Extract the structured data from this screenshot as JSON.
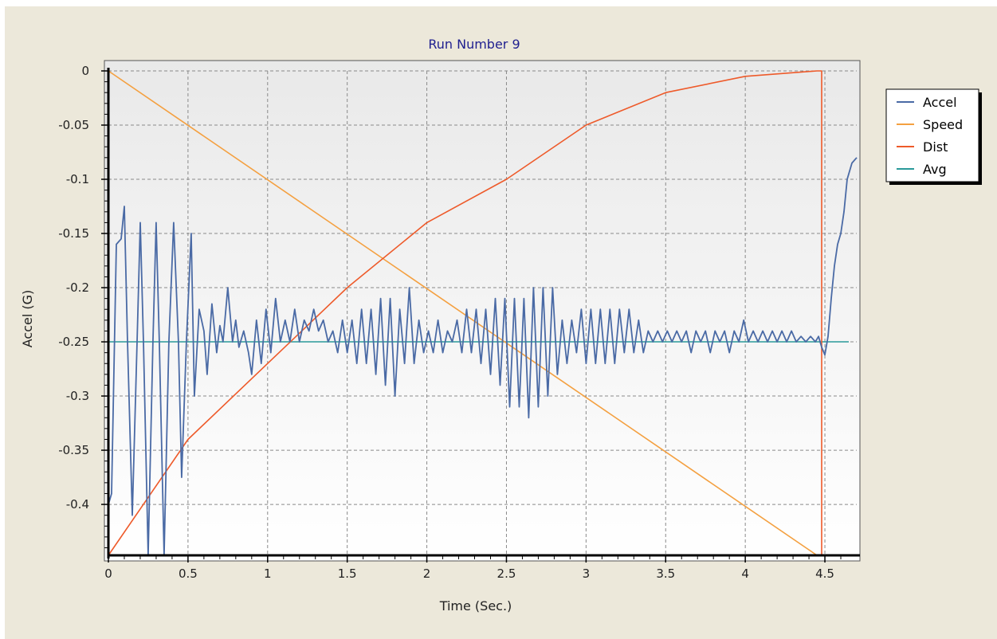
{
  "chart_data": {
    "type": "line",
    "title": "Run Number 9",
    "xlabel": "Time (Sec.)",
    "ylabel": "Accel (G)",
    "xlim": [
      0,
      4.7
    ],
    "ylim": [
      -0.447,
      0
    ],
    "x_ticks": [
      0,
      0.5,
      1,
      1.5,
      2,
      2.5,
      3,
      3.5,
      4,
      4.5
    ],
    "x_tick_labels": [
      "0",
      "0.5",
      "1",
      "1.5",
      "2",
      "2.5",
      "3",
      "3.5",
      "4",
      "4.5"
    ],
    "y_ticks": [
      0,
      -0.05,
      -0.1,
      -0.15,
      -0.2,
      -0.25,
      -0.3,
      -0.35,
      -0.4
    ],
    "y_tick_labels": [
      "0",
      "-0.05",
      "-0.1",
      "-0.15",
      "-0.2",
      "-0.25",
      "-0.3",
      "-0.35",
      "-0.4"
    ],
    "grid": true,
    "legend_position": "top-right",
    "series": [
      {
        "name": "Accel",
        "color": "#4a6aa5",
        "points": [
          [
            0,
            -0.4
          ],
          [
            0.02,
            -0.39
          ],
          [
            0.05,
            -0.16
          ],
          [
            0.08,
            -0.155
          ],
          [
            0.1,
            -0.125
          ],
          [
            0.12,
            -0.25
          ],
          [
            0.15,
            -0.41
          ],
          [
            0.18,
            -0.25
          ],
          [
            0.2,
            -0.14
          ],
          [
            0.22,
            -0.25
          ],
          [
            0.25,
            -0.447
          ],
          [
            0.28,
            -0.25
          ],
          [
            0.3,
            -0.14
          ],
          [
            0.32,
            -0.25
          ],
          [
            0.35,
            -0.447
          ],
          [
            0.38,
            -0.25
          ],
          [
            0.41,
            -0.14
          ],
          [
            0.44,
            -0.25
          ],
          [
            0.46,
            -0.375
          ],
          [
            0.49,
            -0.25
          ],
          [
            0.52,
            -0.15
          ],
          [
            0.54,
            -0.3
          ],
          [
            0.57,
            -0.22
          ],
          [
            0.6,
            -0.24
          ],
          [
            0.62,
            -0.28
          ],
          [
            0.65,
            -0.215
          ],
          [
            0.68,
            -0.26
          ],
          [
            0.7,
            -0.235
          ],
          [
            0.72,
            -0.25
          ],
          [
            0.75,
            -0.2
          ],
          [
            0.78,
            -0.25
          ],
          [
            0.8,
            -0.23
          ],
          [
            0.82,
            -0.255
          ],
          [
            0.85,
            -0.24
          ],
          [
            0.88,
            -0.26
          ],
          [
            0.9,
            -0.28
          ],
          [
            0.93,
            -0.23
          ],
          [
            0.96,
            -0.27
          ],
          [
            0.99,
            -0.22
          ],
          [
            1.02,
            -0.26
          ],
          [
            1.05,
            -0.21
          ],
          [
            1.08,
            -0.25
          ],
          [
            1.11,
            -0.23
          ],
          [
            1.14,
            -0.25
          ],
          [
            1.17,
            -0.22
          ],
          [
            1.2,
            -0.25
          ],
          [
            1.23,
            -0.23
          ],
          [
            1.26,
            -0.24
          ],
          [
            1.29,
            -0.22
          ],
          [
            1.32,
            -0.24
          ],
          [
            1.35,
            -0.23
          ],
          [
            1.38,
            -0.25
          ],
          [
            1.41,
            -0.24
          ],
          [
            1.44,
            -0.26
          ],
          [
            1.47,
            -0.23
          ],
          [
            1.5,
            -0.26
          ],
          [
            1.53,
            -0.23
          ],
          [
            1.56,
            -0.27
          ],
          [
            1.59,
            -0.22
          ],
          [
            1.62,
            -0.27
          ],
          [
            1.65,
            -0.22
          ],
          [
            1.68,
            -0.28
          ],
          [
            1.71,
            -0.21
          ],
          [
            1.74,
            -0.29
          ],
          [
            1.77,
            -0.21
          ],
          [
            1.8,
            -0.3
          ],
          [
            1.83,
            -0.22
          ],
          [
            1.86,
            -0.27
          ],
          [
            1.89,
            -0.2
          ],
          [
            1.92,
            -0.27
          ],
          [
            1.95,
            -0.23
          ],
          [
            1.98,
            -0.26
          ],
          [
            2.01,
            -0.24
          ],
          [
            2.04,
            -0.26
          ],
          [
            2.07,
            -0.23
          ],
          [
            2.1,
            -0.26
          ],
          [
            2.13,
            -0.24
          ],
          [
            2.16,
            -0.25
          ],
          [
            2.19,
            -0.23
          ],
          [
            2.22,
            -0.26
          ],
          [
            2.25,
            -0.22
          ],
          [
            2.28,
            -0.26
          ],
          [
            2.31,
            -0.22
          ],
          [
            2.34,
            -0.27
          ],
          [
            2.37,
            -0.22
          ],
          [
            2.4,
            -0.28
          ],
          [
            2.43,
            -0.21
          ],
          [
            2.46,
            -0.29
          ],
          [
            2.49,
            -0.21
          ],
          [
            2.52,
            -0.31
          ],
          [
            2.55,
            -0.21
          ],
          [
            2.58,
            -0.31
          ],
          [
            2.61,
            -0.21
          ],
          [
            2.64,
            -0.32
          ],
          [
            2.67,
            -0.2
          ],
          [
            2.7,
            -0.31
          ],
          [
            2.73,
            -0.2
          ],
          [
            2.76,
            -0.3
          ],
          [
            2.79,
            -0.2
          ],
          [
            2.82,
            -0.28
          ],
          [
            2.85,
            -0.23
          ],
          [
            2.88,
            -0.27
          ],
          [
            2.91,
            -0.23
          ],
          [
            2.94,
            -0.26
          ],
          [
            2.97,
            -0.22
          ],
          [
            3,
            -0.27
          ],
          [
            3.03,
            -0.22
          ],
          [
            3.06,
            -0.27
          ],
          [
            3.09,
            -0.22
          ],
          [
            3.12,
            -0.27
          ],
          [
            3.15,
            -0.22
          ],
          [
            3.18,
            -0.27
          ],
          [
            3.21,
            -0.22
          ],
          [
            3.24,
            -0.26
          ],
          [
            3.27,
            -0.22
          ],
          [
            3.3,
            -0.26
          ],
          [
            3.33,
            -0.23
          ],
          [
            3.36,
            -0.26
          ],
          [
            3.39,
            -0.24
          ],
          [
            3.42,
            -0.25
          ],
          [
            3.45,
            -0.24
          ],
          [
            3.48,
            -0.25
          ],
          [
            3.51,
            -0.24
          ],
          [
            3.54,
            -0.25
          ],
          [
            3.57,
            -0.24
          ],
          [
            3.6,
            -0.25
          ],
          [
            3.63,
            -0.24
          ],
          [
            3.66,
            -0.26
          ],
          [
            3.69,
            -0.24
          ],
          [
            3.72,
            -0.25
          ],
          [
            3.75,
            -0.24
          ],
          [
            3.78,
            -0.26
          ],
          [
            3.81,
            -0.24
          ],
          [
            3.84,
            -0.25
          ],
          [
            3.87,
            -0.24
          ],
          [
            3.9,
            -0.26
          ],
          [
            3.93,
            -0.24
          ],
          [
            3.96,
            -0.25
          ],
          [
            3.99,
            -0.23
          ],
          [
            4.02,
            -0.25
          ],
          [
            4.05,
            -0.24
          ],
          [
            4.08,
            -0.25
          ],
          [
            4.11,
            -0.24
          ],
          [
            4.14,
            -0.25
          ],
          [
            4.17,
            -0.24
          ],
          [
            4.2,
            -0.25
          ],
          [
            4.23,
            -0.24
          ],
          [
            4.26,
            -0.25
          ],
          [
            4.29,
            -0.24
          ],
          [
            4.32,
            -0.25
          ],
          [
            4.35,
            -0.245
          ],
          [
            4.38,
            -0.25
          ],
          [
            4.41,
            -0.245
          ],
          [
            4.44,
            -0.25
          ],
          [
            4.46,
            -0.245
          ],
          [
            4.48,
            -0.255
          ],
          [
            4.5,
            -0.262
          ],
          [
            4.52,
            -0.245
          ],
          [
            4.54,
            -0.21
          ],
          [
            4.56,
            -0.18
          ],
          [
            4.58,
            -0.16
          ],
          [
            4.6,
            -0.15
          ],
          [
            4.62,
            -0.13
          ],
          [
            4.64,
            -0.1
          ],
          [
            4.67,
            -0.085
          ],
          [
            4.7,
            -0.08
          ]
        ]
      },
      {
        "name": "Speed",
        "color": "#f4a040",
        "points": [
          [
            0,
            0
          ],
          [
            4.45,
            -0.447
          ],
          [
            4.7,
            -0.447
          ]
        ]
      },
      {
        "name": "Dist",
        "color": "#ee5a2a",
        "points": [
          [
            0,
            -0.447
          ],
          [
            0.5,
            -0.34
          ],
          [
            1,
            -0.27
          ],
          [
            1.5,
            -0.2
          ],
          [
            2,
            -0.14
          ],
          [
            2.5,
            -0.1
          ],
          [
            3,
            -0.05
          ],
          [
            3.5,
            -0.02
          ],
          [
            4,
            -0.005
          ],
          [
            4.45,
            0
          ],
          [
            4.48,
            0
          ],
          [
            4.48,
            -0.447
          ],
          [
            4.7,
            -0.447
          ]
        ]
      },
      {
        "name": "Avg",
        "color": "#2a9a9a",
        "points": [
          [
            0,
            -0.25
          ],
          [
            4.65,
            -0.25
          ]
        ]
      }
    ]
  }
}
